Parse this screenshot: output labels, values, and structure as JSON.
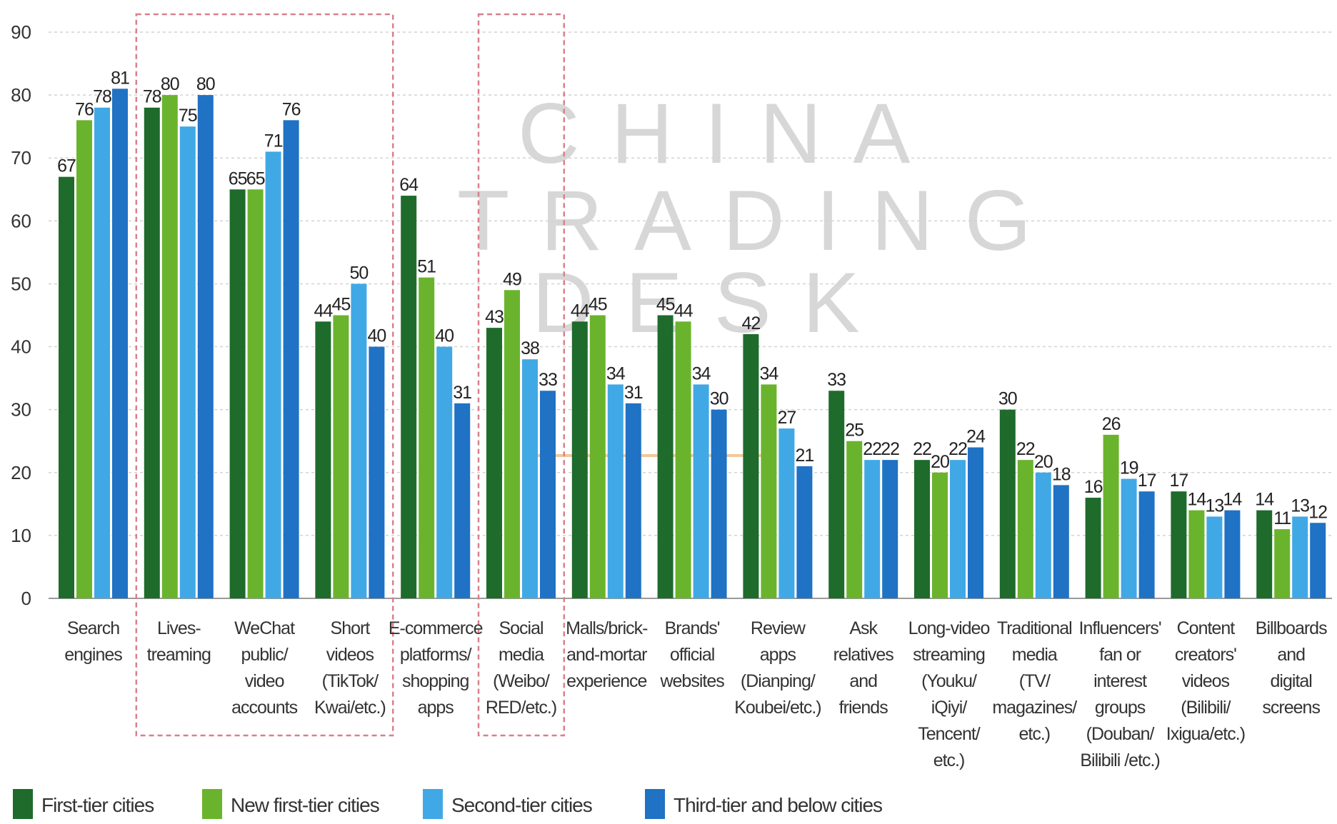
{
  "watermark": {
    "line1": "CHINA",
    "line2": "TRADING",
    "line3": "DESK"
  },
  "chart_data": {
    "type": "bar",
    "title": "",
    "xlabel": "",
    "ylabel": "",
    "ylim": [
      0,
      90
    ],
    "yticks": [
      0,
      10,
      20,
      30,
      40,
      50,
      60,
      70,
      80,
      90
    ],
    "grid": "horizontal dashed",
    "legend_position": "bottom-left",
    "categories": [
      [
        "Search",
        "engines"
      ],
      [
        "Lives-",
        "treaming"
      ],
      [
        "WeChat",
        "public/",
        "video",
        "accounts"
      ],
      [
        "Short",
        "videos",
        "(TikTok/",
        "Kwai/etc.)"
      ],
      [
        "E-commerce",
        "platforms/",
        "shopping",
        "apps"
      ],
      [
        "Social",
        "media",
        "(Weibo/",
        "RED/etc.)"
      ],
      [
        "Malls/brick-",
        "and-mortar",
        "experience"
      ],
      [
        "Brands'",
        "official",
        "websites"
      ],
      [
        "Review",
        "apps",
        "(Dianping/",
        "Koubei/etc.)"
      ],
      [
        "Ask",
        "relatives",
        "and",
        "friends"
      ],
      [
        "Long-video",
        "streaming",
        "(Youku/",
        "iQiyi/",
        "Tencent/",
        "etc.)"
      ],
      [
        "Traditional",
        "media",
        "(TV/",
        "magazines/",
        "etc.)"
      ],
      [
        "Influencers'",
        "fan or",
        "interest",
        "groups",
        "(Douban/",
        "Bilibili /etc.)"
      ],
      [
        "Content",
        "creators'",
        "videos",
        "(Bilibili/",
        "Ixigua/etc.)"
      ],
      [
        "Billboards",
        "and",
        "digital",
        "screens"
      ]
    ],
    "series": [
      {
        "name": "First-tier cities",
        "color": "#1e6b2c",
        "values": [
          67,
          78,
          65,
          44,
          64,
          43,
          44,
          45,
          42,
          33,
          22,
          30,
          16,
          17,
          14
        ]
      },
      {
        "name": "New first-tier cities",
        "color": "#6ab42d",
        "values": [
          76,
          80,
          65,
          45,
          51,
          49,
          45,
          44,
          34,
          25,
          20,
          22,
          26,
          14,
          11
        ]
      },
      {
        "name": "Second-tier cities",
        "color": "#41a8e6",
        "values": [
          78,
          75,
          71,
          50,
          40,
          38,
          34,
          34,
          27,
          22,
          22,
          20,
          19,
          13,
          13
        ]
      },
      {
        "name": "Third-tier and below cities",
        "color": "#1f72c4",
        "values": [
          81,
          80,
          76,
          40,
          31,
          33,
          31,
          30,
          21,
          22,
          24,
          18,
          17,
          14,
          12
        ]
      }
    ],
    "highlight_groups": [
      [
        1,
        3
      ],
      [
        5,
        5
      ]
    ],
    "highlight_color": "#d9808a"
  }
}
